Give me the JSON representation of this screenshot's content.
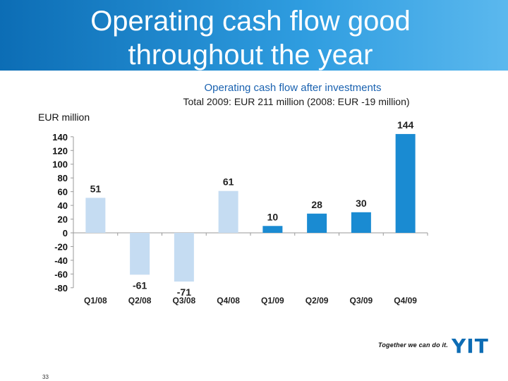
{
  "slide": {
    "title_line1": "Operating cash flow good",
    "title_line2": "throughout the year",
    "page_number": "33"
  },
  "branding": {
    "tagline": "Together we can do it.",
    "logo_text": "YIT",
    "logo_color": "#0d6cb4"
  },
  "chart_data": {
    "type": "bar",
    "title": "Operating cash flow after investments",
    "subtitle": "Total 2009: EUR 211 million (2008: EUR -19 million)",
    "ylabel": "EUR million",
    "xlabel": "",
    "categories": [
      "Q1/08",
      "Q2/08",
      "Q3/08",
      "Q4/08",
      "Q1/09",
      "Q2/09",
      "Q3/09",
      "Q4/09"
    ],
    "values": [
      51,
      -61,
      -71,
      61,
      10,
      28,
      30,
      144
    ],
    "data_labels": [
      "51",
      "-61",
      "-71",
      "61",
      "10",
      "28",
      "30",
      "144"
    ],
    "ylim": [
      -80,
      140
    ],
    "yticks": [
      140,
      120,
      100,
      80,
      60,
      40,
      20,
      0,
      -20,
      -40,
      -60,
      -80
    ],
    "grid": false,
    "colors": {
      "2008": "#c5dcf2",
      "2009": "#1a8bd2"
    },
    "bar_color_by_category": [
      "#c5dcf2",
      "#c5dcf2",
      "#c5dcf2",
      "#c5dcf2",
      "#1a8bd2",
      "#1a8bd2",
      "#1a8bd2",
      "#1a8bd2"
    ]
  }
}
